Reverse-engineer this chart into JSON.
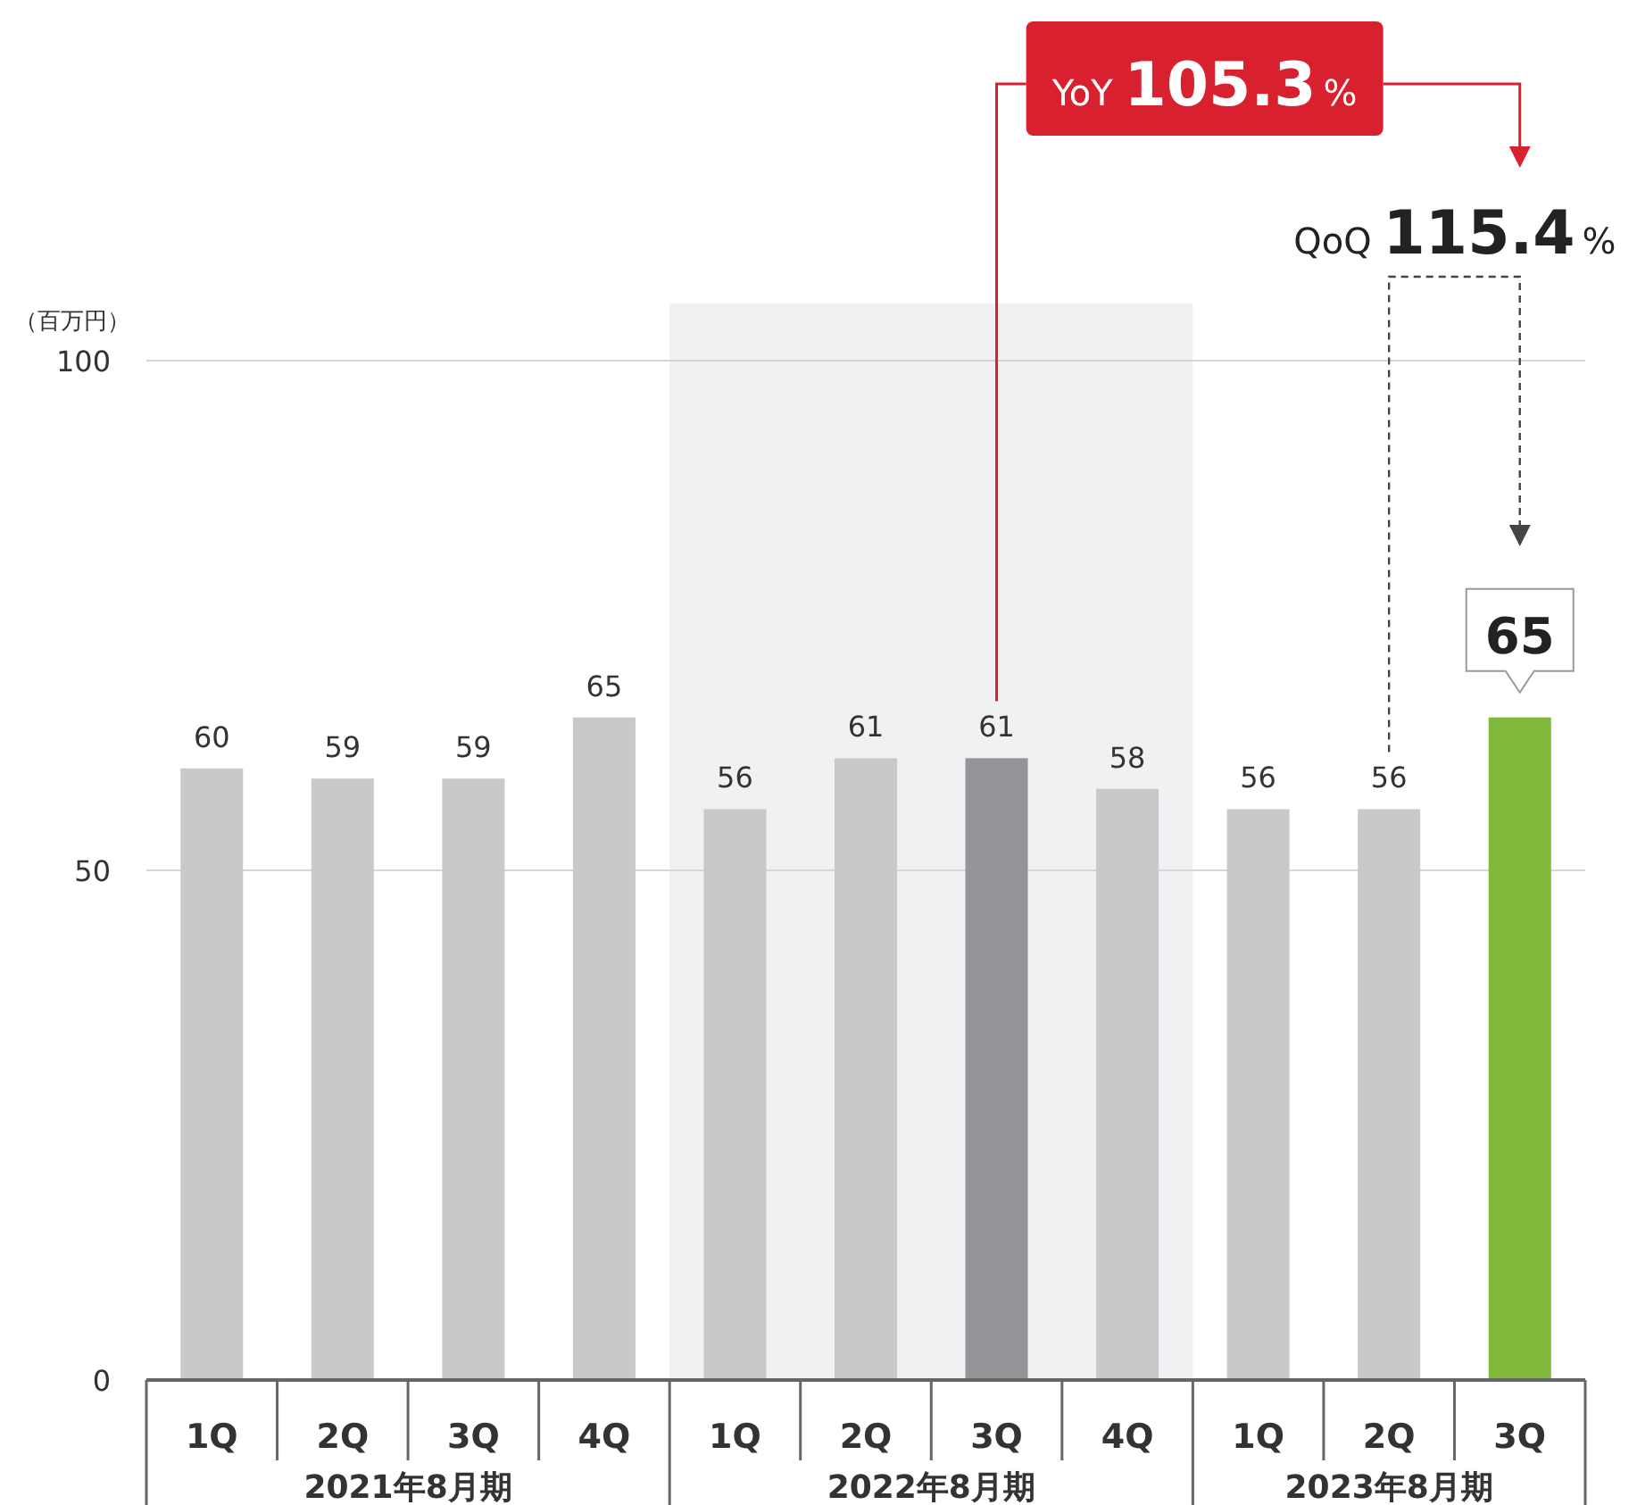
{
  "chart_data": {
    "type": "bar",
    "ylabel": "（百万円）",
    "categories": [
      "1Q",
      "2Q",
      "3Q",
      "4Q",
      "1Q",
      "2Q",
      "3Q",
      "4Q",
      "1Q",
      "2Q",
      "3Q"
    ],
    "values": [
      60,
      59,
      59,
      65,
      56,
      61,
      61,
      58,
      56,
      56,
      65
    ],
    "colors": [
      "#c8c9cb",
      "#c8c9cb",
      "#c8c9cb",
      "#c8c9cb",
      "#c8c9cb",
      "#c8c9cb",
      "#939598",
      "#c8c9cb",
      "#c8c9cb",
      "#c8c9cb",
      "#80b83c"
    ],
    "ylim": [
      0,
      100
    ],
    "yticks": [
      0,
      50,
      100
    ],
    "grid": "y",
    "data_labels": true,
    "annotations": [
      "YoY 105.3%",
      "QoQ 115.4%",
      "2021年8月期",
      "2022年8月期",
      "2023年8月期"
    ]
  }
}
